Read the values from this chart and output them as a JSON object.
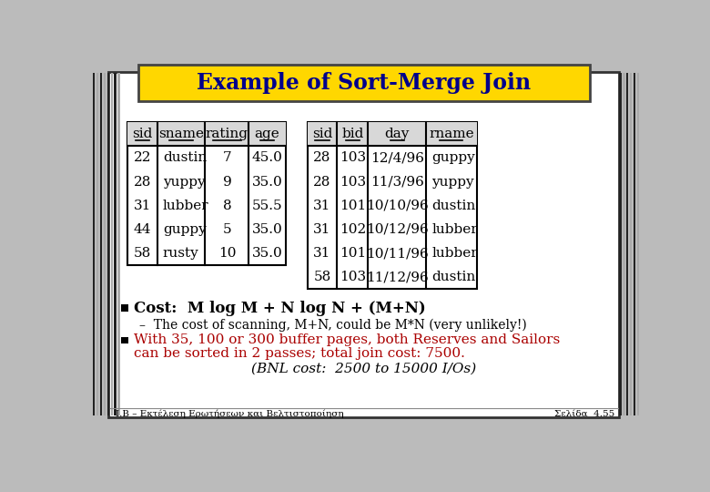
{
  "title": "Example of Sort-Merge Join",
  "title_bg": "#FFD700",
  "title_color": "#00008B",
  "left_table": {
    "headers": [
      "sid",
      "sname",
      "rating",
      "age"
    ],
    "rows": [
      [
        "22",
        "dustin",
        "7",
        "45.0"
      ],
      [
        "28",
        "yuppy",
        "9",
        "35.0"
      ],
      [
        "31",
        "lubber",
        "8",
        "55.5"
      ],
      [
        "44",
        "guppy",
        "5",
        "35.0"
      ],
      [
        "58",
        "rusty",
        "10",
        "35.0"
      ]
    ]
  },
  "right_table": {
    "headers": [
      "sid",
      "bid",
      "day",
      "rname"
    ],
    "rows": [
      [
        "28",
        "103",
        "12/4/96",
        "guppy"
      ],
      [
        "28",
        "103",
        "11/3/96",
        "yuppy"
      ],
      [
        "31",
        "101",
        "10/10/96",
        "dustin"
      ],
      [
        "31",
        "102",
        "10/12/96",
        "lubber"
      ],
      [
        "31",
        "101",
        "10/11/96",
        "lubber"
      ],
      [
        "58",
        "103",
        "11/12/96",
        "dustin"
      ]
    ]
  },
  "bullet1": "Cost:  M log M + N log N + (M+N)",
  "bullet1_sub": "–  The cost of scanning, M+N, could be M*N (very unlikely!)",
  "bullet2_line1": "With 35, 100 or 300 buffer pages, both Reserves and Sailors",
  "bullet2_line2": "can be sorted in 2 passes; total join cost: 7500.",
  "bullet2_italic": "(BNL cost:  2500 to 15000 I/Os)",
  "footer_left": "I.B – Εκτέλεση Ερωτήσεων και Βελτιστοποίηση",
  "footer_right": "Σελίδα  4.55",
  "red_color": "#AA0000",
  "header_bg": "#D8D8D8",
  "stripe_dark": "#222222",
  "stripe_light": "#AAAAAA"
}
